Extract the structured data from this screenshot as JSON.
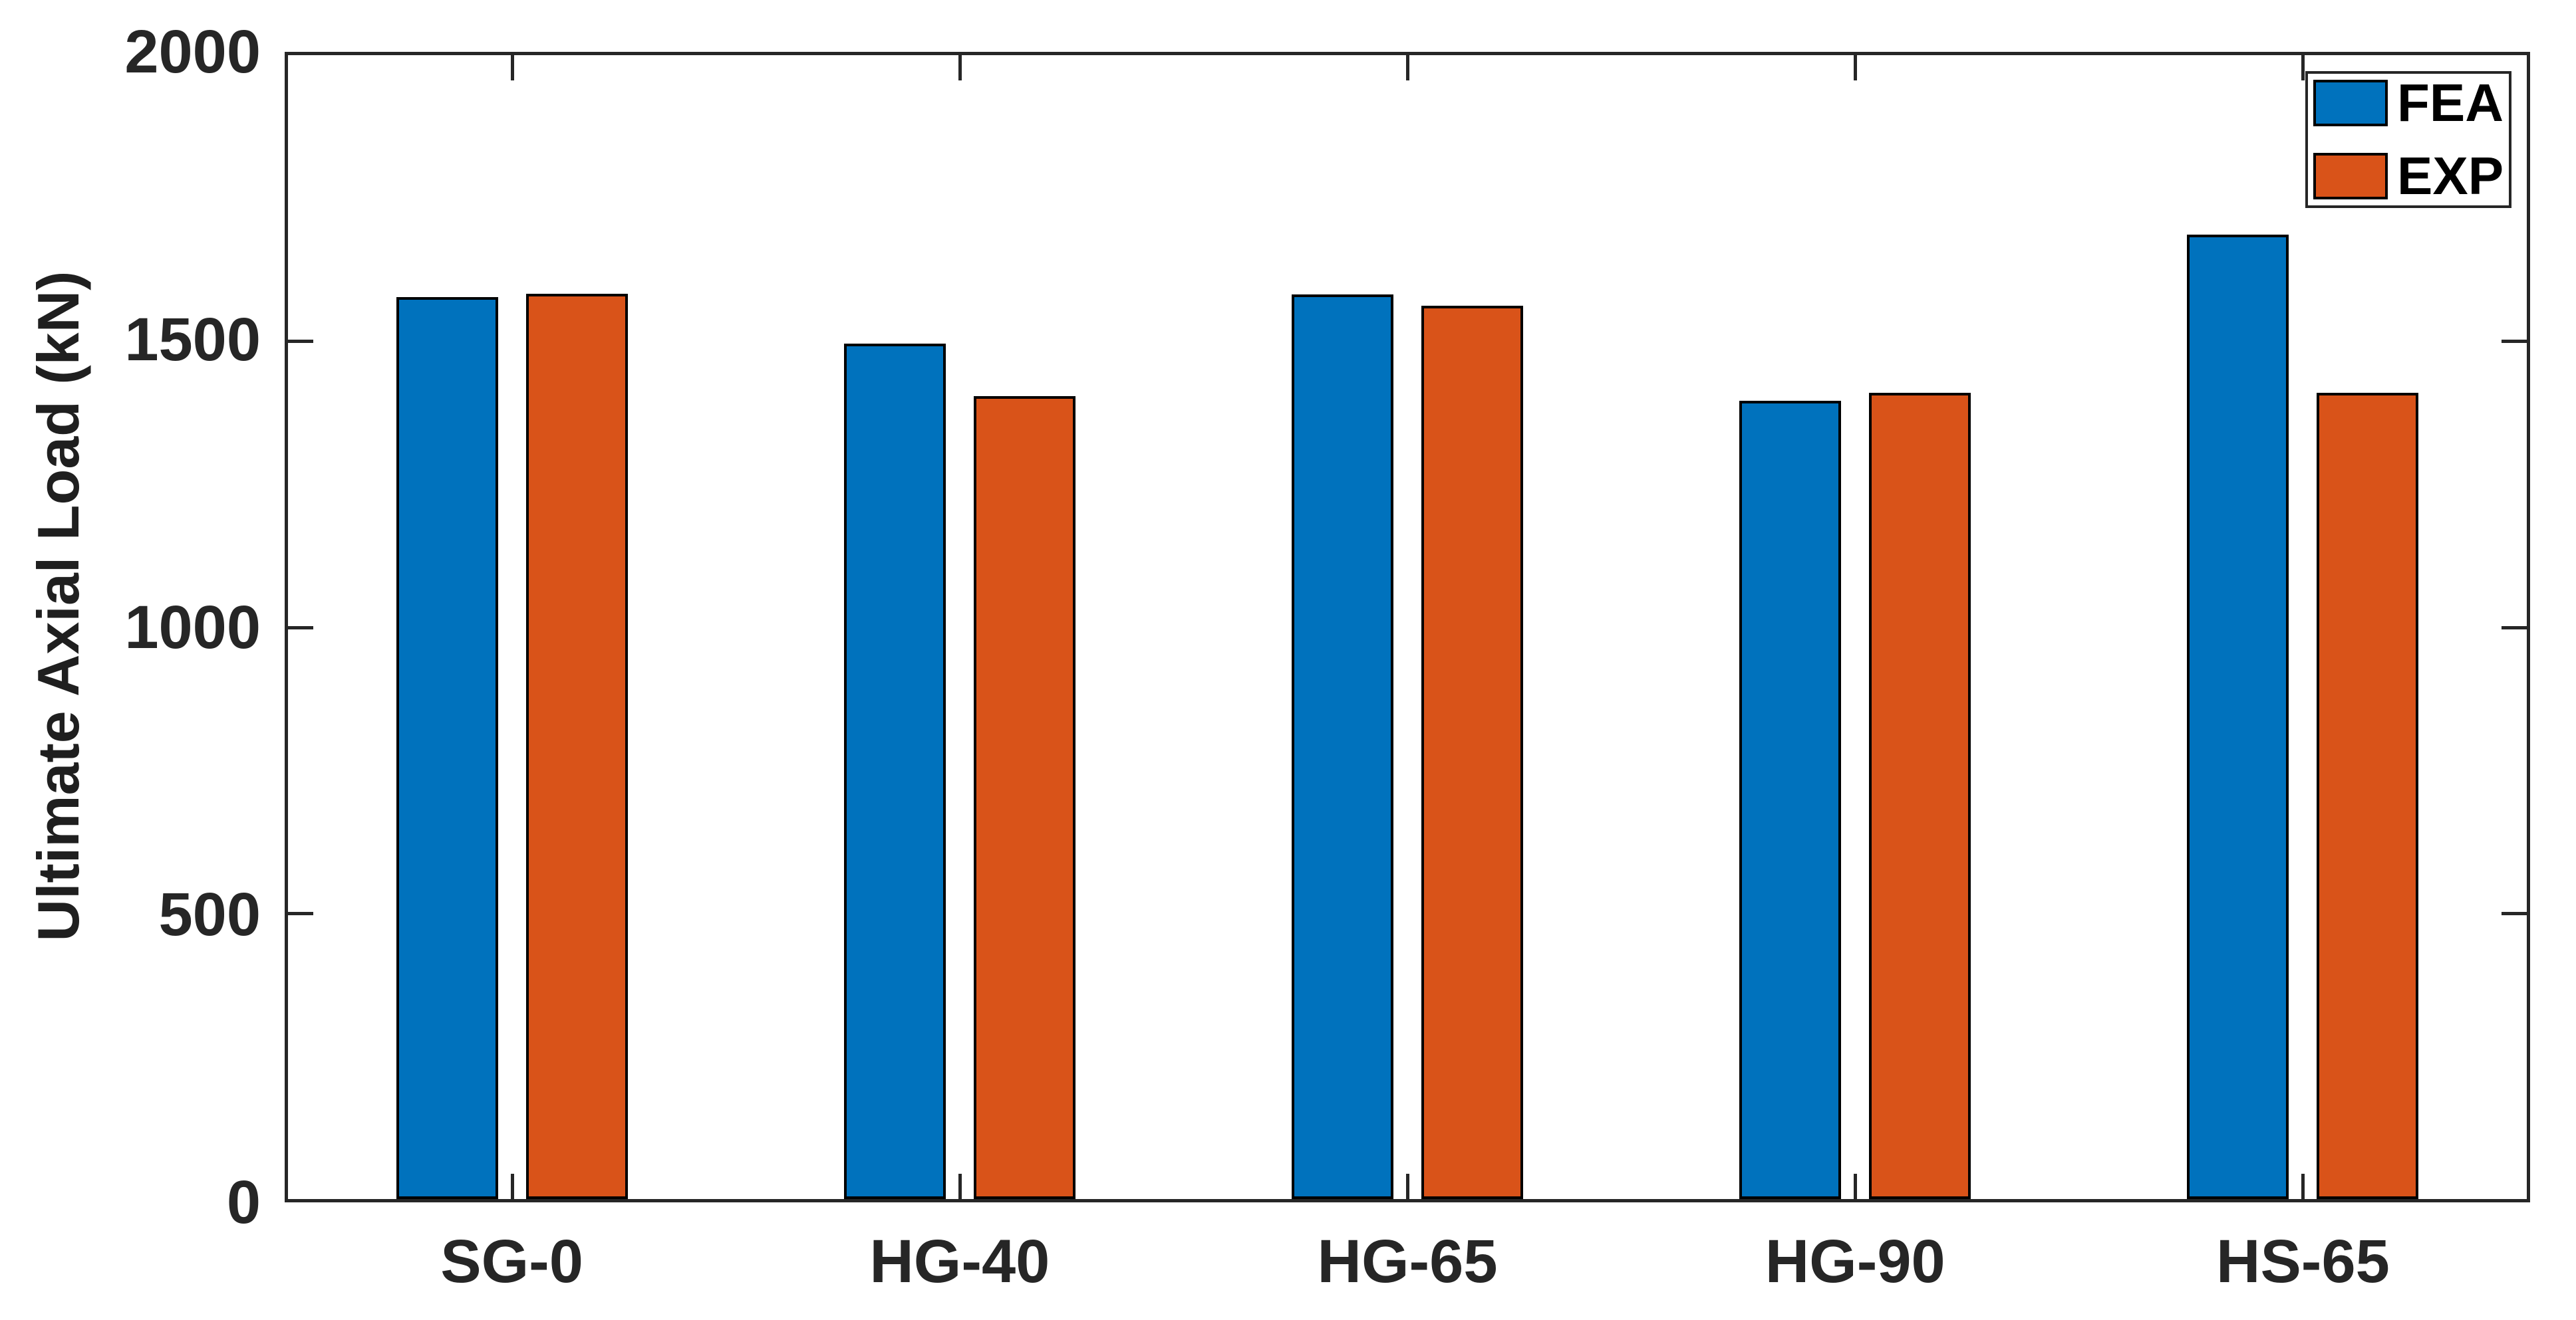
{
  "chart_data": {
    "type": "bar",
    "title": "",
    "ylabel": "Ultimate Axial Load (kN)",
    "xlabel": "",
    "categories": [
      "SG-0",
      "HG-40",
      "HG-65",
      "HG-90",
      "HS-65"
    ],
    "series": [
      {
        "name": "FEA",
        "color": "#0072BD",
        "values": [
          1577,
          1496,
          1582,
          1396,
          1686
        ]
      },
      {
        "name": "EXP",
        "color": "#D95319",
        "values": [
          1583,
          1404,
          1562,
          1410,
          1410
        ]
      }
    ],
    "ylim": [
      0,
      2000
    ],
    "yticks": [
      0,
      500,
      1000,
      1500,
      2000
    ],
    "grid": false,
    "legend_position": "top-right",
    "colors": {
      "bar_edge": "#000000",
      "axis": "#262626",
      "background": "#ffffff"
    }
  }
}
